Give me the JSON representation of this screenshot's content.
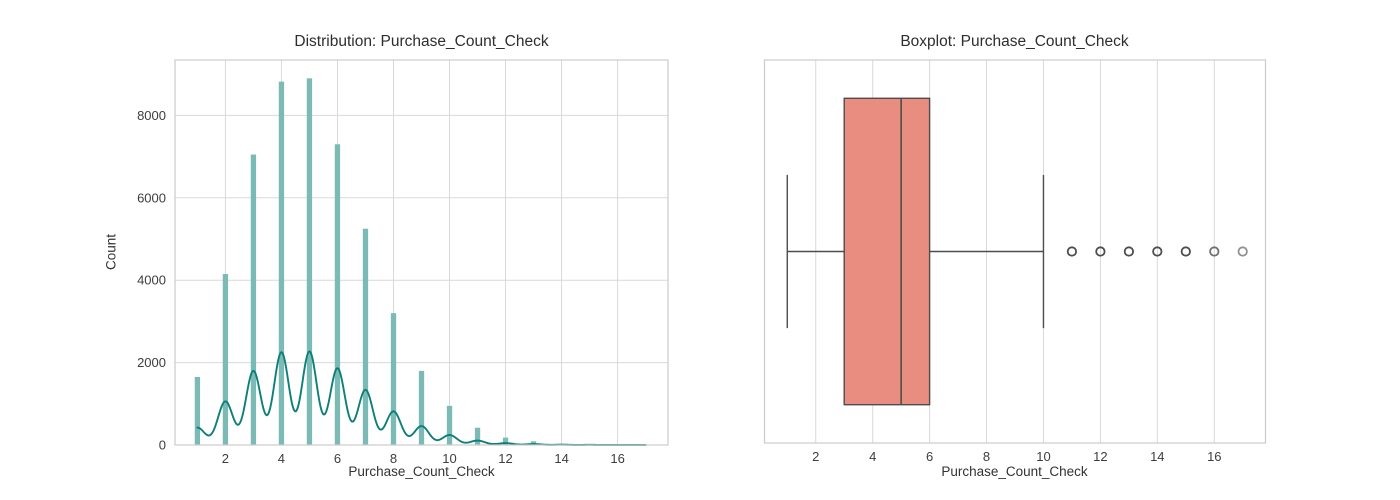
{
  "figure": {
    "background": "#ffffff",
    "grid_color": "#d9d9d9",
    "axes_edge_color": "#cbcbcb",
    "text_color": "#2e2e2e"
  },
  "chart_data": [
    {
      "type": "bar",
      "subtype": "histogram_with_kde",
      "title": "Distribution: Purchase_Count_Check",
      "xlabel": "Purchase_Count_Check",
      "ylabel": "Count",
      "xlim": [
        0.2,
        17.8
      ],
      "ylim": [
        0,
        9345
      ],
      "xticks": [
        2,
        4,
        6,
        8,
        10,
        12,
        14,
        16
      ],
      "yticks": [
        0,
        2000,
        4000,
        6000,
        8000
      ],
      "grid": true,
      "bar_color": "#7cbab6",
      "kde_color": "#0e7f78",
      "bin_width": 0.19,
      "categories": [
        1,
        2,
        3,
        4,
        5,
        6,
        7,
        8,
        9,
        10,
        11,
        12,
        13,
        14,
        15,
        16,
        17
      ],
      "values": [
        1650,
        4150,
        7050,
        8820,
        8900,
        7300,
        5250,
        3200,
        1800,
        950,
        420,
        180,
        90,
        30,
        15,
        8,
        5
      ],
      "kde": {
        "bandwidth": 0.27,
        "scale": 0.255,
        "x_start": 1,
        "x_end": 17
      }
    },
    {
      "type": "boxplot",
      "orientation": "horizontal",
      "title": "Boxplot: Purchase_Count_Check",
      "xlabel": "Purchase_Count_Check",
      "xlim": [
        0.2,
        17.8
      ],
      "xticks": [
        2,
        4,
        6,
        8,
        10,
        12,
        14,
        16
      ],
      "grid": true,
      "box_color": "#e98d80",
      "line_color": "#4d4d4d",
      "stats": {
        "whisker_low": 1,
        "q1": 3,
        "median": 5,
        "q3": 6,
        "whisker_high": 10
      },
      "outliers": [
        11,
        12,
        13,
        14,
        15,
        16,
        17
      ],
      "outlier_strokes": [
        "#4d4d4d",
        "#4d4d4d",
        "#4d4d4d",
        "#4d4d4d",
        "#4d4d4d",
        "#6f6f6f",
        "#919191"
      ]
    }
  ]
}
